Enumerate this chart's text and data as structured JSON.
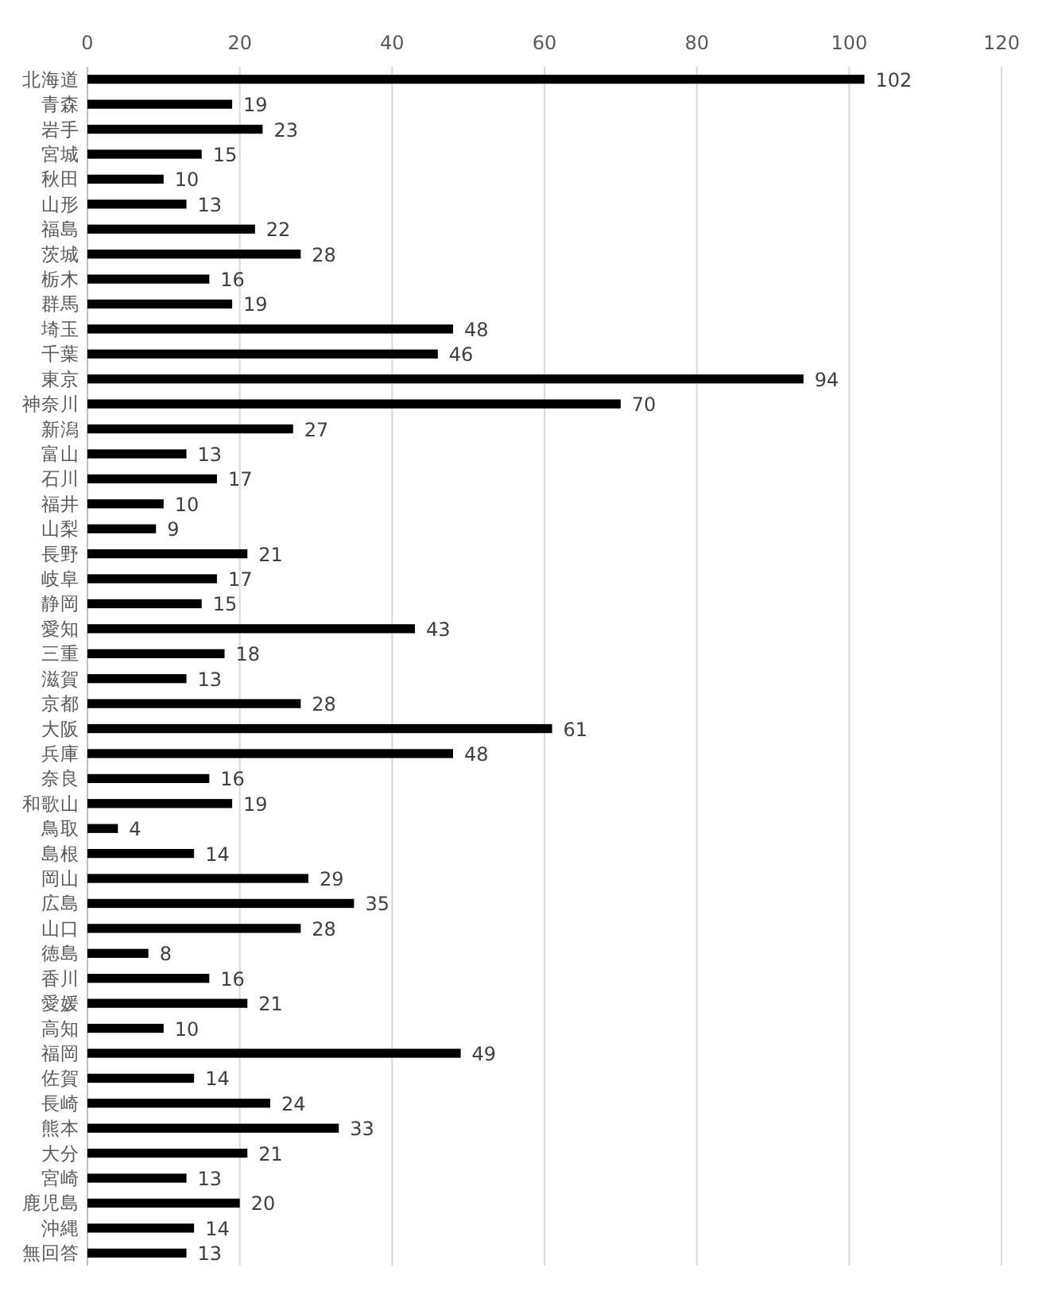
{
  "chart_data": {
    "type": "bar",
    "orientation": "horizontal",
    "categories": [
      "北海道",
      "青森",
      "岩手",
      "宮城",
      "秋田",
      "山形",
      "福島",
      "茨城",
      "栃木",
      "群馬",
      "埼玉",
      "千葉",
      "東京",
      "神奈川",
      "新潟",
      "富山",
      "石川",
      "福井",
      "山梨",
      "長野",
      "岐阜",
      "静岡",
      "愛知",
      "三重",
      "滋賀",
      "京都",
      "大阪",
      "兵庫",
      "奈良",
      "和歌山",
      "鳥取",
      "島根",
      "岡山",
      "広島",
      "山口",
      "徳島",
      "香川",
      "愛媛",
      "高知",
      "福岡",
      "佐賀",
      "長崎",
      "熊本",
      "大分",
      "宮崎",
      "鹿児島",
      "沖縄",
      "無回答"
    ],
    "values": [
      102,
      19,
      23,
      15,
      10,
      13,
      22,
      28,
      16,
      19,
      48,
      46,
      94,
      70,
      27,
      13,
      17,
      10,
      9,
      21,
      17,
      15,
      43,
      18,
      13,
      28,
      61,
      48,
      16,
      19,
      4,
      14,
      29,
      35,
      28,
      8,
      16,
      21,
      10,
      49,
      14,
      24,
      33,
      21,
      13,
      20,
      14,
      13
    ],
    "color": "#000000",
    "xlim": [
      0,
      120
    ],
    "xticks": [
      0,
      20,
      40,
      60,
      80,
      100,
      120
    ],
    "grid": "x",
    "data_labels": true
  }
}
